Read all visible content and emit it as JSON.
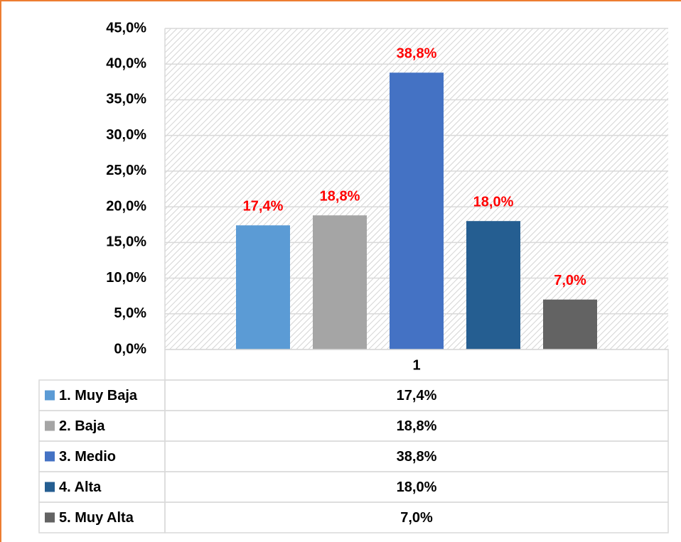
{
  "chart_data": {
    "type": "bar",
    "categories": [
      "1"
    ],
    "series": [
      {
        "name": "1. Muy Baja",
        "color": "#5b9bd5",
        "values": [
          17.4
        ],
        "value_labels": [
          "17,4%"
        ]
      },
      {
        "name": "2. Baja",
        "color": "#a5a5a5",
        "values": [
          18.8
        ],
        "value_labels": [
          "18,8%"
        ]
      },
      {
        "name": "3. Medio",
        "color": "#4472c4",
        "values": [
          38.8
        ],
        "value_labels": [
          "38,8%"
        ]
      },
      {
        "name": "4. Alta",
        "color": "#255e91",
        "values": [
          18.0
        ],
        "value_labels": [
          "18,0%"
        ]
      },
      {
        "name": "5. Muy Alta",
        "color": "#636363",
        "values": [
          7.0
        ],
        "value_labels": [
          "7,0%"
        ]
      }
    ],
    "ylim": [
      0,
      45
    ],
    "yticks": [
      {
        "value": 0,
        "label": "0,0%"
      },
      {
        "value": 5,
        "label": "5,0%"
      },
      {
        "value": 10,
        "label": "10,0%"
      },
      {
        "value": 15,
        "label": "15,0%"
      },
      {
        "value": 20,
        "label": "20,0%"
      },
      {
        "value": 25,
        "label": "25,0%"
      },
      {
        "value": 30,
        "label": "30,0%"
      },
      {
        "value": 35,
        "label": "35,0%"
      },
      {
        "value": 40,
        "label": "40,0%"
      },
      {
        "value": 45,
        "label": "45,0%"
      }
    ],
    "grid": true,
    "data_label_color": "#ff0000"
  }
}
